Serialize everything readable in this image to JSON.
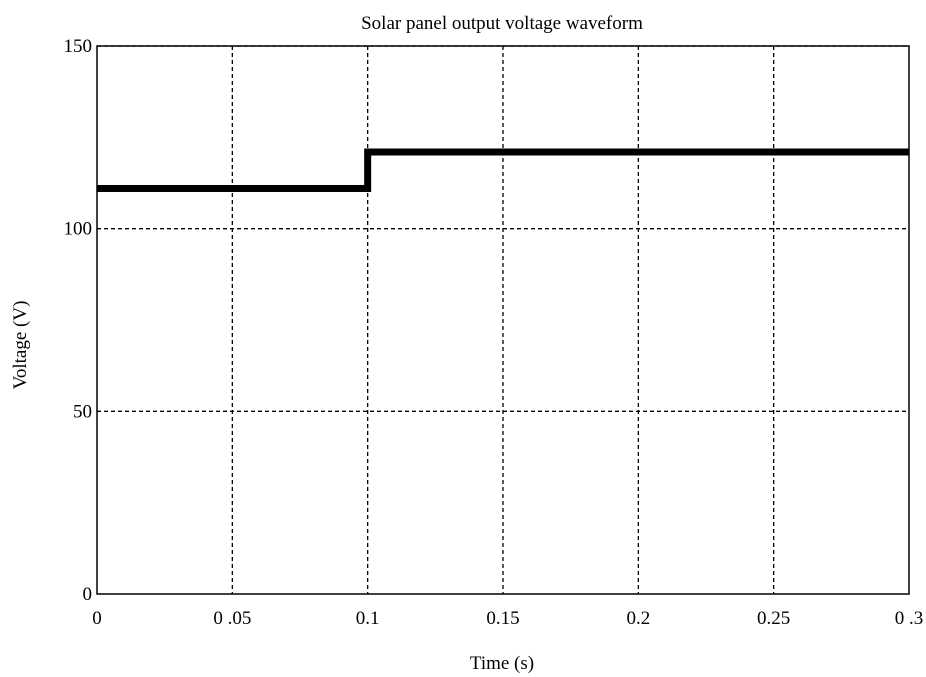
{
  "chart_data": {
    "type": "line",
    "title": "Solar panel output voltage waveform",
    "xlabel": "Time (s)",
    "ylabel": "Voltage (V)",
    "xlim": [
      0,
      0.3
    ],
    "ylim": [
      0,
      150
    ],
    "xticks": [
      0,
      0.05,
      0.1,
      0.15,
      0.2,
      0.25,
      0.3
    ],
    "xtick_labels": [
      "0",
      "0 .05",
      "0.1",
      "0.15",
      "0.2",
      "0.25",
      "0 .3"
    ],
    "yticks": [
      0,
      50,
      100,
      150
    ],
    "ytick_labels": [
      "0",
      "50",
      "100",
      "150"
    ],
    "grid": true,
    "line_color": "#000000",
    "series": [
      {
        "x": [
          0,
          0.1,
          0.1,
          0.3
        ],
        "y": [
          111,
          111,
          121,
          121
        ]
      }
    ]
  }
}
